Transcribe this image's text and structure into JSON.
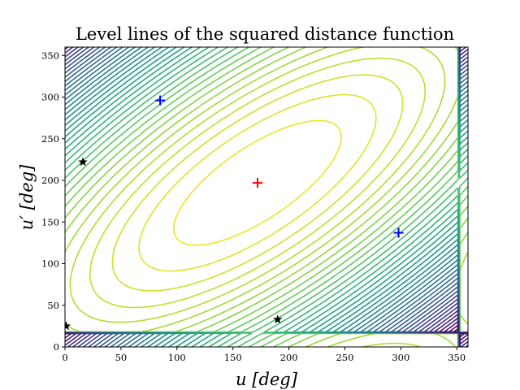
{
  "chart_data": {
    "type": "contour",
    "title": "Level lines of the squared distance function",
    "xlabel": "u [deg]",
    "ylabel": "u′ [deg]",
    "xlim": [
      0,
      360
    ],
    "ylim": [
      0,
      360
    ],
    "xticks": [
      "0",
      "50",
      "100",
      "150",
      "200",
      "250",
      "300",
      "350"
    ],
    "yticks": [
      "0",
      "50",
      "100",
      "150",
      "200",
      "250",
      "300",
      "350"
    ],
    "xtick_values": [
      0,
      50,
      100,
      150,
      200,
      250,
      300,
      350
    ],
    "ytick_values": [
      0,
      50,
      100,
      150,
      200,
      250,
      300,
      350
    ],
    "colormap": [
      "#440154",
      "#482878",
      "#3e4989",
      "#31688e",
      "#26828e",
      "#1f9e89",
      "#35b779",
      "#6ece58",
      "#b5de2b",
      "#fde725"
    ],
    "grid": false,
    "red_plus": [
      {
        "x": 172,
        "y": 197
      }
    ],
    "blue_plus": [
      {
        "x": 85,
        "y": 296
      },
      {
        "x": 298,
        "y": 137
      }
    ],
    "black_stars": [
      {
        "x": 16,
        "y": 222
      },
      {
        "x": 1,
        "y": 25
      },
      {
        "x": 190,
        "y": 33
      }
    ]
  }
}
